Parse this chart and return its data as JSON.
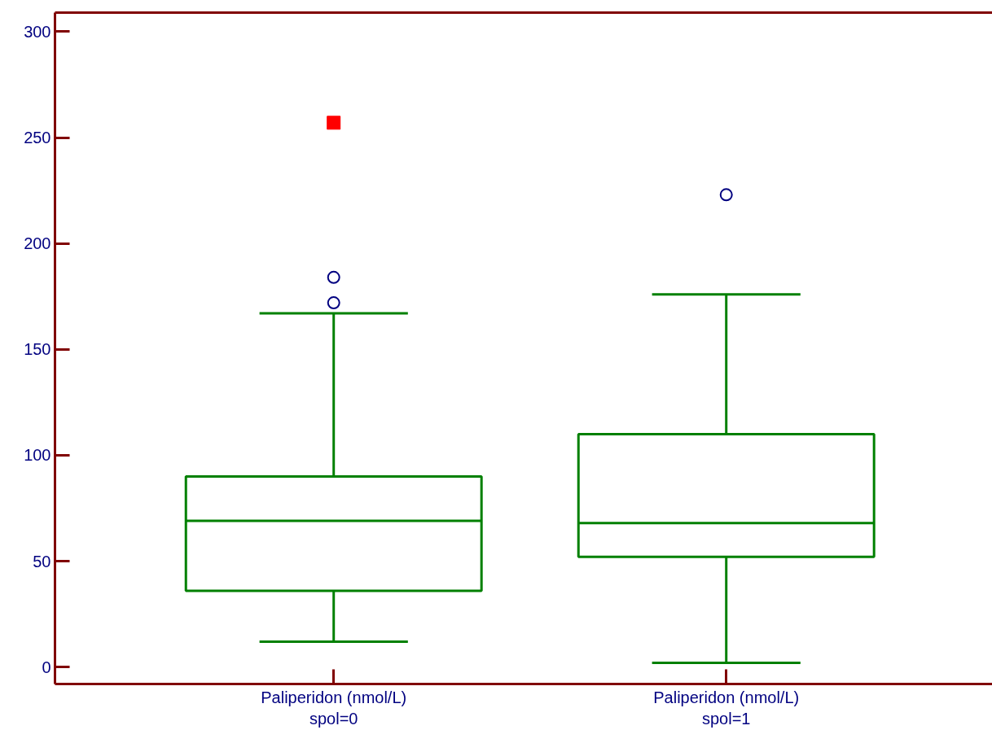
{
  "chart_data": {
    "type": "box",
    "categories": [
      "Paliperidon (nmol/L)\nspol=0",
      "Paliperidon (nmol/L)\nspol=1"
    ],
    "series": [
      {
        "type": "box",
        "color": "#008000",
        "boxes": [
          {
            "low": 12,
            "q1": 36,
            "median": 69,
            "q3": 90,
            "high": 167,
            "outliers": [
              172,
              184
            ]
          },
          {
            "low": 2,
            "q1": 52,
            "median": 68,
            "q3": 110,
            "high": 176,
            "outliers": [
              223
            ]
          }
        ]
      },
      {
        "type": "scatter",
        "color": "#ff0000",
        "marker": "square",
        "x": [
          "Paliperidon (nmol/L)\nspol=0"
        ],
        "values": [
          257
        ]
      }
    ],
    "ylim": [
      -8,
      309
    ],
    "yticks": [
      0,
      50,
      100,
      150,
      200,
      250,
      300
    ],
    "grid": false
  }
}
